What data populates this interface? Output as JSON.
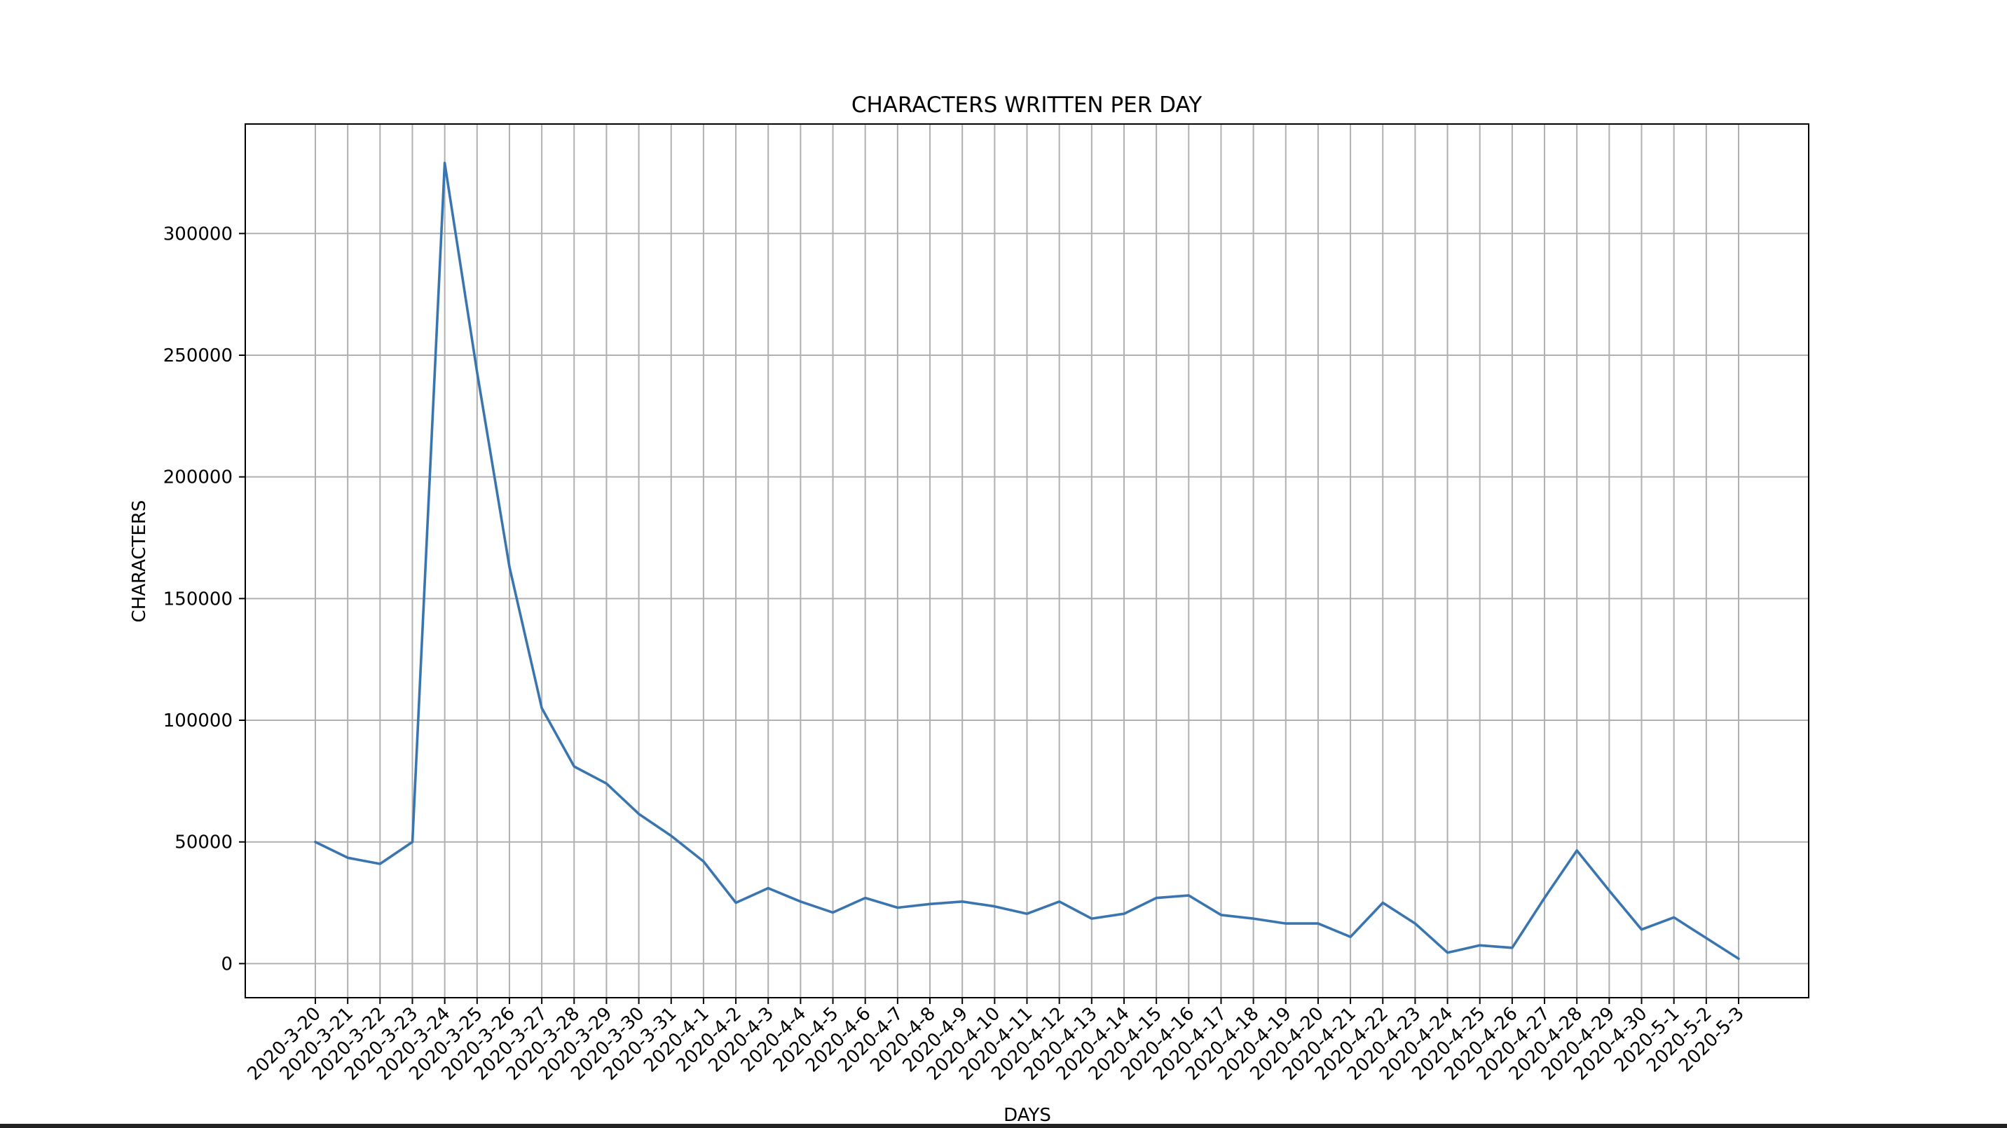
{
  "chart_data": {
    "type": "line",
    "title": "CHARACTERS WRITTEN PER DAY",
    "xlabel": "DAYS",
    "ylabel": "CHARACTERS",
    "grid": true,
    "ylim": [
      -14000,
      345000
    ],
    "yticks": [
      0,
      50000,
      100000,
      150000,
      200000,
      250000,
      300000
    ],
    "categories": [
      "2020-3-20",
      "2020-3-21",
      "2020-3-22",
      "2020-3-23",
      "2020-3-24",
      "2020-3-25",
      "2020-3-26",
      "2020-3-27",
      "2020-3-28",
      "2020-3-29",
      "2020-3-30",
      "2020-3-31",
      "2020-4-1",
      "2020-4-2",
      "2020-4-3",
      "2020-4-4",
      "2020-4-5",
      "2020-4-6",
      "2020-4-7",
      "2020-4-8",
      "2020-4-9",
      "2020-4-10",
      "2020-4-11",
      "2020-4-12",
      "2020-4-13",
      "2020-4-14",
      "2020-4-15",
      "2020-4-16",
      "2020-4-17",
      "2020-4-18",
      "2020-4-19",
      "2020-4-20",
      "2020-4-21",
      "2020-4-22",
      "2020-4-23",
      "2020-4-24",
      "2020-4-25",
      "2020-4-26",
      "2020-4-27",
      "2020-4-28",
      "2020-4-29",
      "2020-4-30",
      "2020-5-1",
      "2020-5-2",
      "2020-5-3"
    ],
    "series": [
      {
        "color": "#3a75af",
        "values": [
          50000,
          43500,
          41000,
          50000,
          329000,
          243000,
          163000,
          105000,
          81000,
          74000,
          61500,
          52500,
          42000,
          25000,
          31000,
          25500,
          21000,
          27000,
          23000,
          24500,
          25500,
          23500,
          20500,
          25500,
          18500,
          20500,
          27000,
          28000,
          20000,
          18500,
          16500,
          16500,
          11000,
          25000,
          16500,
          4500,
          7500,
          6500,
          27000,
          46500,
          30000,
          14000,
          19000,
          10500,
          2000
        ]
      }
    ]
  }
}
